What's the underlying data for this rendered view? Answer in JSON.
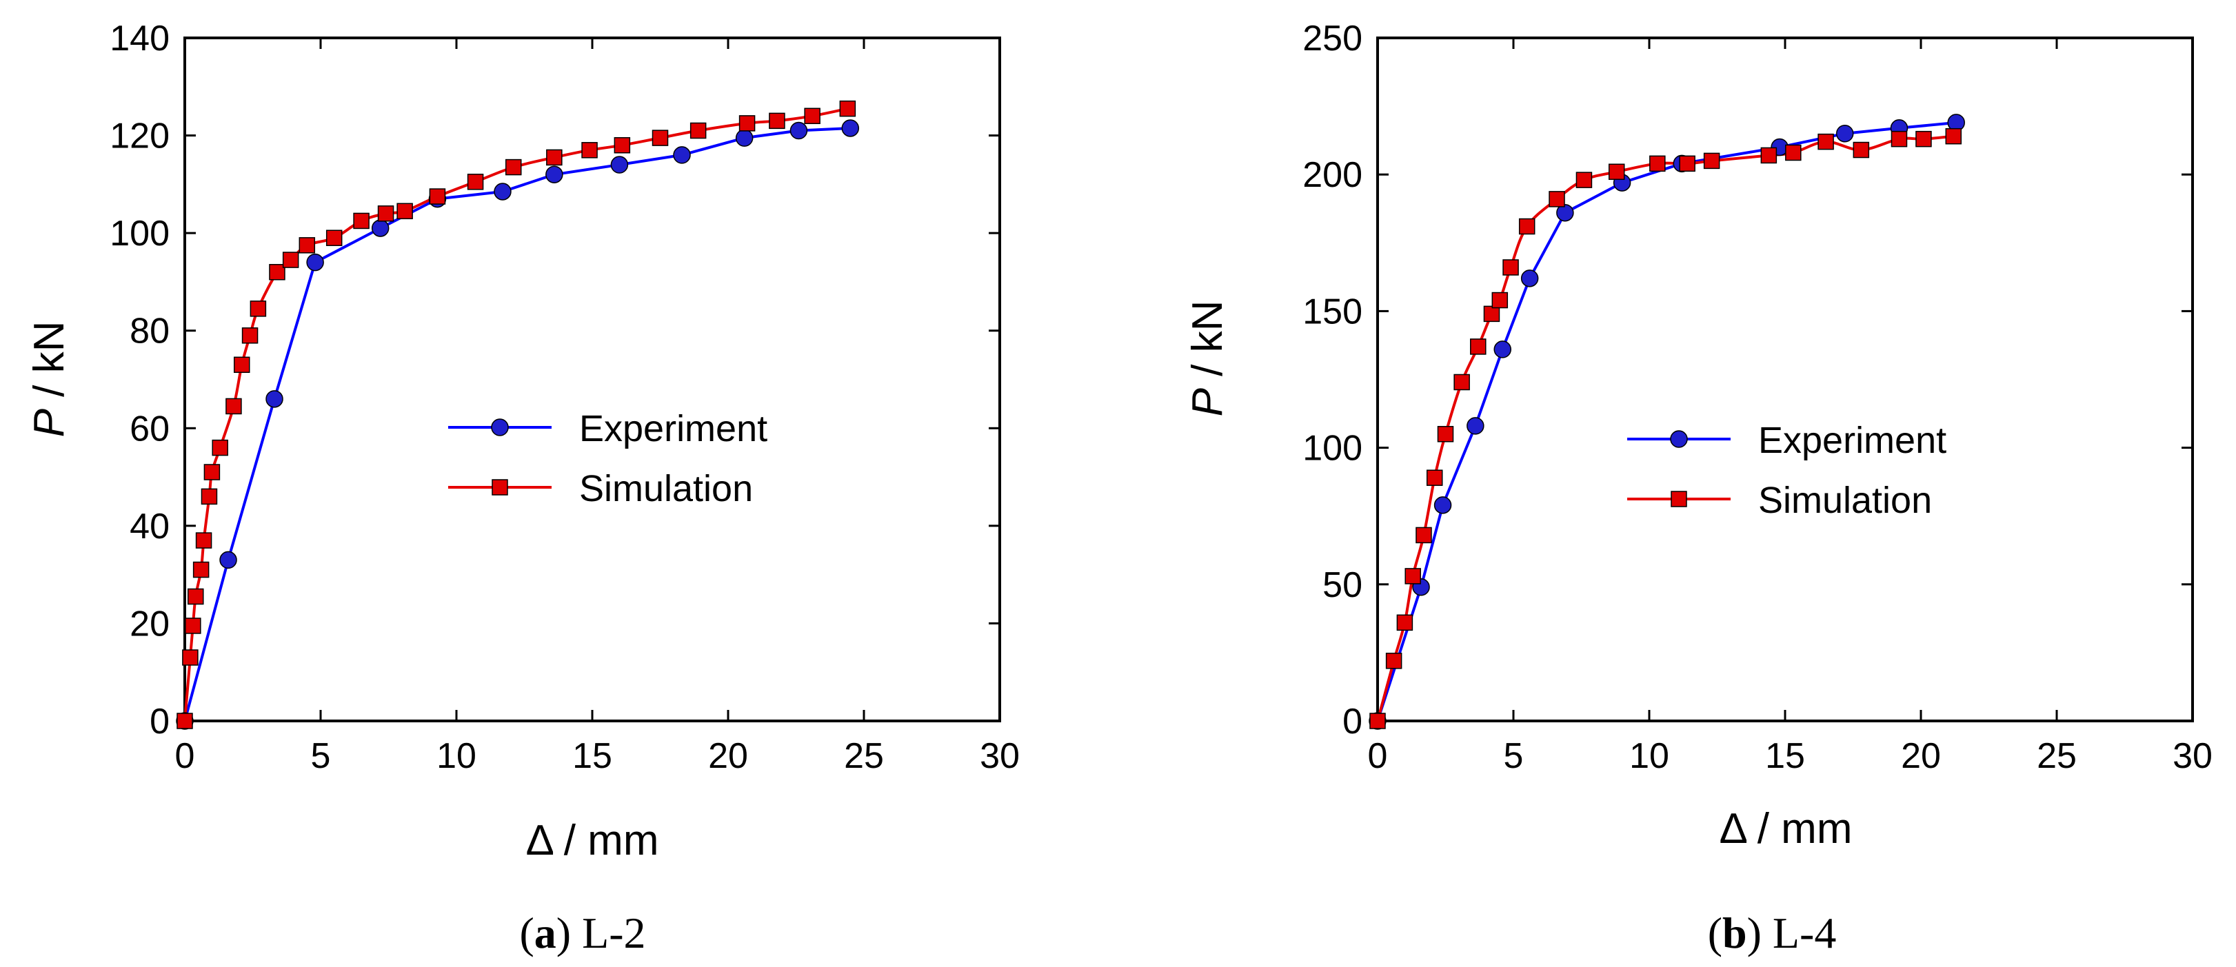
{
  "chart_data": [
    {
      "type": "line",
      "caption_letter": "a",
      "caption_text": "L-2",
      "xlabel": "Δ / mm",
      "ylabel_var": "P",
      "ylabel_unit": " / kN",
      "xlim": [
        0,
        30
      ],
      "ylim": [
        0,
        140
      ],
      "xticks": [
        0,
        5,
        10,
        15,
        20,
        25,
        30
      ],
      "yticks": [
        0,
        20,
        40,
        60,
        80,
        100,
        120,
        140
      ],
      "legend_position": "center-right",
      "series": [
        {
          "name": "Experiment",
          "color": "#0000ff",
          "marker": "circle",
          "marker_color": "#1f1fcc",
          "x": [
            0,
            1.6,
            3.3,
            4.8,
            7.2,
            9.3,
            11.7,
            13.6,
            16,
            18.3,
            20.6,
            22.6,
            24.5
          ],
          "y": [
            0,
            33,
            66,
            94,
            101,
            107,
            108.5,
            112,
            114,
            116,
            119.5,
            121,
            121.5
          ]
        },
        {
          "name": "Simulation",
          "color": "#e60000",
          "marker": "square",
          "marker_color": "#e00000",
          "x": [
            0,
            0.2,
            0.3,
            0.4,
            0.6,
            0.7,
            0.9,
            1.0,
            1.3,
            1.8,
            2.1,
            2.4,
            2.7,
            3.4,
            3.9,
            4.5,
            5.5,
            6.5,
            7.4,
            8.1,
            9.3,
            10.7,
            12.1,
            13.6,
            14.9,
            16.1,
            17.5,
            18.9,
            20.7,
            21.8,
            23.1,
            24.4
          ],
          "y": [
            0,
            13,
            19.5,
            25.5,
            31,
            37,
            46,
            51,
            56,
            64.5,
            73,
            79,
            84.5,
            92,
            94.5,
            97.5,
            99,
            102.5,
            104,
            104.5,
            107.5,
            110.5,
            113.5,
            115.5,
            117,
            118,
            119.5,
            121,
            122.5,
            123,
            124,
            125.5
          ]
        }
      ]
    },
    {
      "type": "line",
      "caption_letter": "b",
      "caption_text": "L-4",
      "xlabel": "Δ / mm",
      "ylabel_var": "P",
      "ylabel_unit": " / kN",
      "xlim": [
        0,
        30
      ],
      "ylim": [
        0,
        250
      ],
      "xticks": [
        0,
        5,
        10,
        15,
        20,
        25,
        30
      ],
      "yticks": [
        0,
        50,
        100,
        150,
        200,
        250
      ],
      "legend_position": "center-right",
      "series": [
        {
          "name": "Experiment",
          "color": "#0000ff",
          "marker": "circle",
          "marker_color": "#1f1fcc",
          "x": [
            0,
            1.6,
            2.4,
            3.6,
            4.6,
            5.6,
            6.9,
            9.0,
            11.2,
            14.8,
            17.2,
            19.2,
            21.3
          ],
          "y": [
            0,
            49,
            79,
            108,
            136,
            162,
            186,
            197,
            204,
            210,
            215,
            217,
            219
          ]
        },
        {
          "name": "Simulation",
          "color": "#e60000",
          "marker": "square",
          "marker_color": "#e00000",
          "x": [
            0,
            0.6,
            1.0,
            1.3,
            1.7,
            2.1,
            2.5,
            3.1,
            3.7,
            4.2,
            4.5,
            4.9,
            5.5,
            6.6,
            7.6,
            8.8,
            10.3,
            11.4,
            12.3,
            14.4,
            15.3,
            16.5,
            17.8,
            19.2,
            20.1,
            21.2
          ],
          "y": [
            0,
            22,
            36,
            53,
            68,
            89,
            105,
            124,
            137,
            149,
            154,
            166,
            181,
            191,
            198,
            201,
            204,
            204,
            205,
            207,
            208,
            212,
            209,
            213,
            213,
            214
          ]
        }
      ]
    }
  ]
}
